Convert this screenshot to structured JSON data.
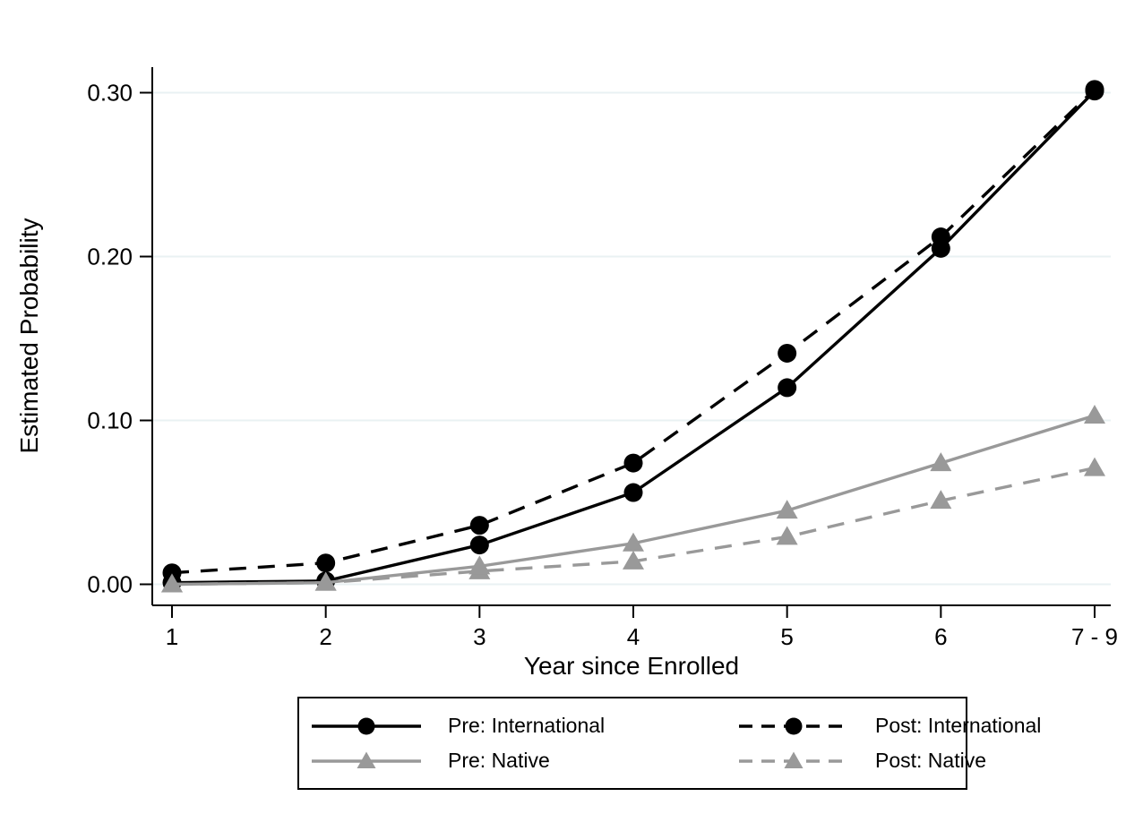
{
  "chart_data": {
    "type": "line",
    "title": "",
    "xlabel": "Year since Enrolled",
    "ylabel": "Estimated Probability",
    "categories": [
      "1",
      "2",
      "3",
      "4",
      "5",
      "6",
      "7 - 9"
    ],
    "y_ticks": [
      0.0,
      0.1,
      0.2,
      0.3
    ],
    "y_tick_labels": [
      "0.00",
      "0.10",
      "0.20",
      "0.30"
    ],
    "ylim": [
      0,
      0.315
    ],
    "grid": true,
    "grid_color": "#e9f1f3",
    "axis_color": "#000000",
    "legend_position": "bottom-center",
    "legend_columns": 2,
    "series": [
      {
        "name": "Pre: International",
        "color": "#000000",
        "dash": "solid",
        "marker": "circle",
        "values": [
          0.001,
          0.002,
          0.024,
          0.056,
          0.12,
          0.205,
          0.301
        ]
      },
      {
        "name": "Post: International",
        "color": "#000000",
        "dash": "dashed",
        "marker": "circle",
        "values": [
          0.007,
          0.013,
          0.036,
          0.074,
          0.141,
          0.212,
          0.302
        ]
      },
      {
        "name": "Pre: Native",
        "color": "#999999",
        "dash": "solid",
        "marker": "triangle",
        "values": [
          0.0,
          0.001,
          0.011,
          0.025,
          0.045,
          0.074,
          0.103
        ]
      },
      {
        "name": "Post: Native",
        "color": "#999999",
        "dash": "dashed",
        "marker": "triangle",
        "values": [
          0.0,
          0.001,
          0.008,
          0.014,
          0.029,
          0.051,
          0.071
        ]
      }
    ]
  }
}
